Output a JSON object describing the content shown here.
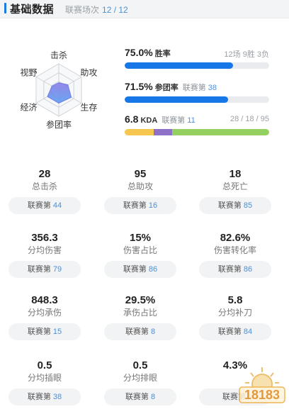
{
  "header": {
    "title": "基础数据",
    "matches_label": "联赛场次",
    "matches_value": "12 / 12"
  },
  "radar": {
    "axes": [
      "击杀",
      "助攻",
      "生存",
      "参团率",
      "经济",
      "视野"
    ],
    "values": [
      0.28,
      0.4,
      0.55,
      0.5,
      0.5,
      0.3
    ],
    "colors": {
      "web": "#cfd3d8",
      "fill_top": "#8a7be8",
      "fill_bottom": "#5b9ef0"
    }
  },
  "metrics": {
    "winrate": {
      "value": "75.0%",
      "label": "胜率",
      "detail": "12场 9胜 3负",
      "fraction": 0.75
    },
    "participation": {
      "value": "71.5%",
      "label": "参团率",
      "rank_label": "联赛第",
      "rank": "38",
      "fraction": 0.715
    },
    "kda": {
      "value": "6.8",
      "label": "KDA",
      "rank_label": "联赛第",
      "rank": "11",
      "detail": "28 / 18 / 95",
      "parts": [
        {
          "name": "kills",
          "value": 28,
          "color": "#f5c74e"
        },
        {
          "name": "deaths",
          "value": 18,
          "color": "#8e70c9"
        },
        {
          "name": "assists",
          "value": 95,
          "color": "#93d05f"
        }
      ]
    }
  },
  "stats": [
    {
      "value": "28",
      "name": "总击杀",
      "rank_label": "联赛第",
      "rank": "44"
    },
    {
      "value": "95",
      "name": "总助攻",
      "rank_label": "联赛第",
      "rank": "16"
    },
    {
      "value": "18",
      "name": "总死亡",
      "rank_label": "联赛第",
      "rank": "85"
    },
    {
      "value": "356.3",
      "name": "分均伤害",
      "rank_label": "联赛第",
      "rank": "79"
    },
    {
      "value": "15%",
      "name": "伤害占比",
      "rank_label": "联赛第",
      "rank": "86"
    },
    {
      "value": "82.6%",
      "name": "伤害转化率",
      "rank_label": "联赛第",
      "rank": "86"
    },
    {
      "value": "848.3",
      "name": "分均承伤",
      "rank_label": "联赛第",
      "rank": "15"
    },
    {
      "value": "29.5%",
      "name": "承伤占比",
      "rank_label": "联赛第",
      "rank": "8"
    },
    {
      "value": "5.8",
      "name": "分均补刀",
      "rank_label": "联赛第",
      "rank": "84"
    },
    {
      "value": "0.5",
      "name": "分均插眼",
      "rank_label": "联赛第",
      "rank": "38"
    },
    {
      "value": "0.5",
      "name": "分均排眼",
      "rank_label": "联赛第",
      "rank": "8"
    },
    {
      "value": "4.3%",
      "name": "",
      "rank_label": "联赛第",
      "rank": ""
    }
  ],
  "watermark": {
    "text": "18183"
  }
}
